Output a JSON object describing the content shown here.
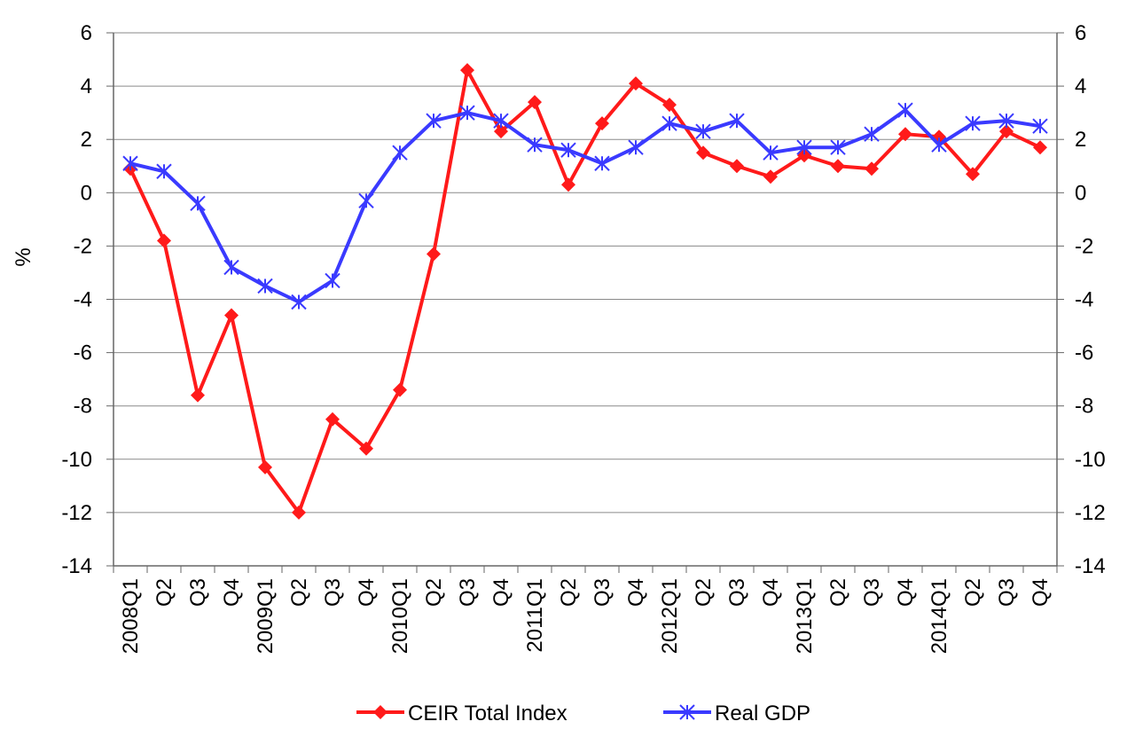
{
  "chart_data": {
    "type": "line",
    "title": "",
    "xlabel": "",
    "ylabel": "%",
    "ylim": [
      -14,
      6
    ],
    "yticks": [
      6,
      4,
      2,
      0,
      -2,
      -4,
      -6,
      -8,
      -10,
      -12,
      -14
    ],
    "y2ticks": [
      6,
      4,
      2,
      0,
      -2,
      -4,
      -6,
      -8,
      -10,
      -12,
      -14
    ],
    "grid": "horizontal",
    "legend_position": "bottom",
    "categories": [
      "2008Q1",
      "Q2",
      "Q3",
      "Q4",
      "2009Q1",
      "Q2",
      "Q3",
      "Q4",
      "2010Q1",
      "Q2",
      "Q3",
      "Q4",
      "2011Q1",
      "Q2",
      "Q3",
      "Q4",
      "2012Q1",
      "Q2",
      "Q3",
      "Q4",
      "2013Q1",
      "Q2",
      "Q3",
      "Q4",
      "2014Q1",
      "Q2",
      "Q3",
      "Q4"
    ],
    "series": [
      {
        "name": "CEIR Total Index",
        "color": "#ff1a1a",
        "marker": "diamond",
        "values": [
          0.9,
          -1.8,
          -7.6,
          -4.6,
          -10.3,
          -12.0,
          -8.5,
          -9.6,
          -7.4,
          -2.3,
          4.6,
          2.3,
          3.4,
          0.3,
          2.6,
          4.1,
          3.3,
          1.5,
          1.0,
          0.6,
          1.4,
          1.0,
          0.9,
          2.2,
          2.1,
          0.7,
          2.3,
          1.7
        ]
      },
      {
        "name": "Real GDP",
        "color": "#3a3aff",
        "marker": "asterisk",
        "values": [
          1.1,
          0.8,
          -0.4,
          -2.8,
          -3.5,
          -4.1,
          -3.3,
          -0.3,
          1.5,
          2.7,
          3.0,
          2.7,
          1.8,
          1.6,
          1.1,
          1.7,
          2.6,
          2.3,
          2.7,
          1.5,
          1.7,
          1.7,
          2.2,
          3.1,
          1.8,
          2.6,
          2.7,
          2.5
        ]
      }
    ]
  }
}
